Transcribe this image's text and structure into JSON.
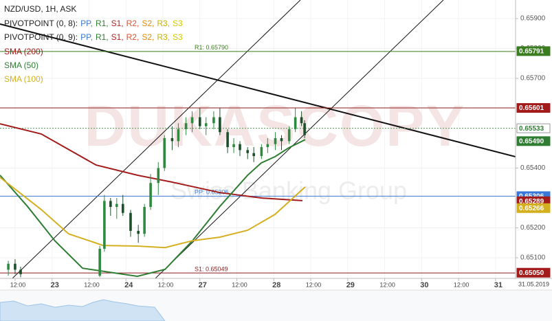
{
  "chart_data": {
    "type": "candlestick",
    "title": "NZD/USD, 1H, ASK",
    "pivot_legends": [
      {
        "prefix": "PIVOTPOINT (0, 8):",
        "items": [
          {
            "text": "PP,",
            "color": "#3a78d8"
          },
          {
            "text": "R1,",
            "color": "#2e7d32"
          },
          {
            "text": "S1,",
            "color": "#b22222"
          },
          {
            "text": "R2,",
            "color": "#e0502a"
          },
          {
            "text": "S2,",
            "color": "#e68a00"
          },
          {
            "text": "R3,",
            "color": "#c9b300"
          },
          {
            "text": "S3",
            "color": "#d6c800"
          }
        ]
      },
      {
        "prefix": "PIVOTPOINT (0, 9):",
        "items": [
          {
            "text": "PP,",
            "color": "#3a78d8"
          },
          {
            "text": "R1,",
            "color": "#2e7d32"
          },
          {
            "text": "S1,",
            "color": "#b22222"
          },
          {
            "text": "R2,",
            "color": "#e0502a"
          },
          {
            "text": "S2,",
            "color": "#e68a00"
          },
          {
            "text": "R3,",
            "color": "#c9b300"
          },
          {
            "text": "S3",
            "color": "#d6c800"
          }
        ]
      }
    ],
    "x": [
      -2.2,
      0,
      1.8,
      27.5,
      29,
      31,
      33,
      35,
      37.5,
      40,
      42,
      44,
      46.5,
      48.5,
      51,
      53,
      55.5,
      57.5,
      60,
      62,
      64.5,
      66.5,
      69,
      71,
      73,
      75.5,
      77.5,
      80,
      82,
      84.5,
      86.5,
      89,
      91,
      93,
      94
    ],
    "open": [
      0.6506,
      0.6508,
      0.6506,
      0.6504,
      0.6513,
      0.6529,
      0.6527,
      0.6528,
      0.6525,
      0.6519,
      0.6518,
      0.6527,
      0.6535,
      0.654,
      0.655,
      0.6549,
      0.6553,
      0.6555,
      0.6557,
      0.6554,
      0.6555,
      0.6557,
      0.6552,
      0.6547,
      0.6548,
      0.6546,
      0.6545,
      0.6544,
      0.6547,
      0.6548,
      0.655,
      0.6549,
      0.6553,
      0.6557,
      0.6555
    ],
    "high": [
      0.6509,
      0.65095,
      0.6507,
      0.6514,
      0.6531,
      0.653,
      0.653,
      0.6531,
      0.6526,
      0.6521,
      0.6528,
      0.6538,
      0.6542,
      0.6551,
      0.6554,
      0.6555,
      0.6557,
      0.6559,
      0.656,
      0.6557,
      0.6559,
      0.656,
      0.6553,
      0.655,
      0.6549,
      0.6547,
      0.6547,
      0.6548,
      0.655,
      0.6552,
      0.6551,
      0.6554,
      0.656,
      0.6559,
      0.6556
    ],
    "low": [
      0.6504,
      0.65045,
      0.65035,
      0.65035,
      0.6512,
      0.6524,
      0.6523,
      0.6524,
      0.6517,
      0.6515,
      0.6517,
      0.6526,
      0.6531,
      0.6539,
      0.6546,
      0.6547,
      0.6551,
      0.6552,
      0.6553,
      0.6551,
      0.6553,
      0.6551,
      0.6545,
      0.6545,
      0.6544,
      0.6543,
      0.6542,
      0.6543,
      0.6545,
      0.6546,
      0.6546,
      0.6548,
      0.6552,
      0.6554,
      0.655
    ],
    "close": [
      0.6508,
      0.6506,
      0.65045,
      0.6513,
      0.6529,
      0.6527,
      0.6528,
      0.6525,
      0.6519,
      0.6518,
      0.6527,
      0.6535,
      0.654,
      0.655,
      0.6549,
      0.6553,
      0.6555,
      0.6557,
      0.6554,
      0.6555,
      0.6557,
      0.6552,
      0.6547,
      0.6548,
      0.6546,
      0.6545,
      0.6544,
      0.6547,
      0.6548,
      0.655,
      0.6549,
      0.6553,
      0.6557,
      0.6555,
      0.6551
    ],
    "up_color": "#2f8a3f",
    "down_color": "#1c4f2a",
    "indicators": [
      {
        "name": "SMA (200)",
        "color": "#a31b1b",
        "x": [
          -4.9,
          8.5,
          26.3,
          39.7,
          50.9,
          66.5,
          79.9,
          93.3
        ],
        "values": [
          0.65548,
          0.65514,
          0.6541,
          0.65376,
          0.65353,
          0.65318,
          0.653,
          0.65291
        ]
      },
      {
        "name": "SMA (50)",
        "color": "#2e7d32",
        "x": [
          -4.9,
          4.0,
          12.9,
          21.9,
          39.7,
          48.7,
          57.6,
          66.5,
          75.5,
          79.9,
          84.4,
          88.9,
          94.2
        ],
        "values": [
          0.65376,
          0.65272,
          0.65157,
          0.65065,
          0.65038,
          0.65061,
          0.65157,
          0.65272,
          0.65376,
          0.65417,
          0.65438,
          0.65468,
          0.65495
        ]
      },
      {
        "name": "SMA (100)",
        "color": "#d4b020",
        "x": [
          -4.9,
          8.5,
          17.4,
          28.6,
          39.7,
          48.7,
          57.6,
          66.5,
          75.5,
          84.4,
          94.2
        ],
        "values": [
          0.65369,
          0.65261,
          0.6518,
          0.65141,
          0.65139,
          0.65134,
          0.65157,
          0.65169,
          0.65192,
          0.65245,
          0.65337
        ]
      }
    ],
    "levels": [
      {
        "value": 0.6579,
        "color": "#3a7d1e",
        "label": "R1: 0.65790"
      },
      {
        "value": 0.65601,
        "color": "#8b1a1a"
      },
      {
        "value": 0.65533,
        "color": "#4c9a5a",
        "dashed": true
      },
      {
        "value": 0.65306,
        "color": "#3a78d8",
        "label": "PP: 0.65306"
      },
      {
        "value": 0.65049,
        "color": "#8b1a1a",
        "label": "S1: 0.65049"
      }
    ],
    "price_labels": [
      {
        "value": 0.65791,
        "label": "0.65791",
        "color": "#3a7d1e"
      },
      {
        "value": 0.65601,
        "label": "0.65601",
        "color": "#a31b1b"
      },
      {
        "value": 0.65533,
        "label": "0.65533",
        "color": "#ffffff",
        "text_color": "#2e7d32"
      },
      {
        "value": 0.6549,
        "label": "0.65490",
        "color": "#2e7d32"
      },
      {
        "value": 0.65306,
        "label": "0.65306",
        "color": "#3a78d8"
      },
      {
        "value": 0.65289,
        "label": "0.65289",
        "color": "#a31b1b"
      },
      {
        "value": 0.65266,
        "label": "0.65266",
        "color": "#d4b020"
      },
      {
        "value": 0.6505,
        "label": "0.65050",
        "color": "#a31b1b"
      }
    ],
    "xlim": [
      -4.9,
      162.5
    ],
    "ylim": [
      0.65031,
      0.65962
    ],
    "xticks": [
      {
        "value": 0,
        "label": "12:00"
      },
      {
        "value": 12,
        "label": "23"
      },
      {
        "value": 24,
        "label": "12:00"
      },
      {
        "value": 36,
        "label": "24"
      },
      {
        "value": 48,
        "label": "12:00"
      },
      {
        "value": 60,
        "label": "27"
      },
      {
        "value": 72,
        "label": "12:00"
      },
      {
        "value": 84,
        "label": "28"
      },
      {
        "value": 96,
        "label": "12:00"
      },
      {
        "value": 108,
        "label": "29"
      },
      {
        "value": 120,
        "label": "12:00"
      },
      {
        "value": 132,
        "label": "30"
      },
      {
        "value": 144,
        "label": "12:00"
      },
      {
        "value": 156,
        "label": "31"
      }
    ],
    "yticks": [
      {
        "value": 0.659,
        "label": "0.65900"
      },
      {
        "value": 0.658,
        "label": "0.65800"
      },
      {
        "value": 0.657,
        "label": "0.65700"
      },
      {
        "value": 0.654,
        "label": "0.65400"
      },
      {
        "value": 0.652,
        "label": "0.65200"
      },
      {
        "value": 0.651,
        "label": "0.65100"
      }
    ],
    "grid": true,
    "date_label": "31.05.2019",
    "watermark": [
      "DUKASCOPY",
      "Swiss Banking Group"
    ]
  }
}
